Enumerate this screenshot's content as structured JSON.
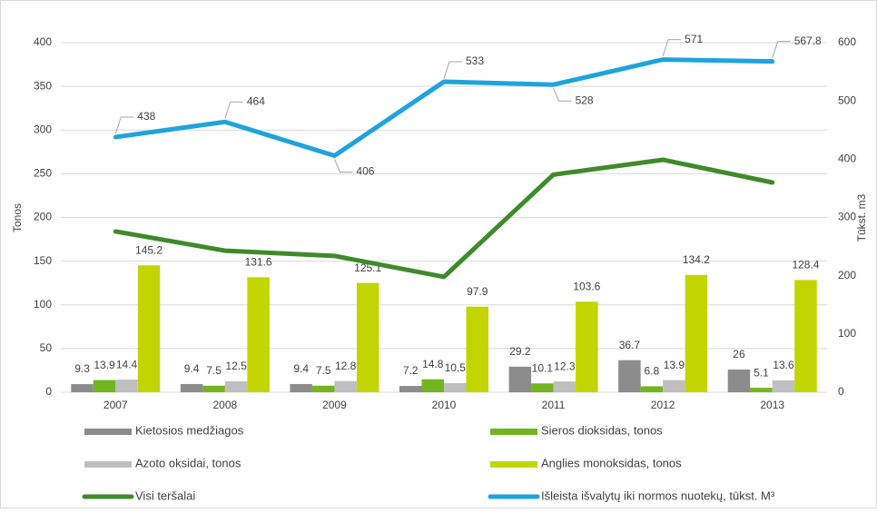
{
  "chart_data": {
    "type": "bar_line",
    "categories": [
      "2007",
      "2008",
      "2009",
      "2010",
      "2011",
      "2012",
      "2013"
    ],
    "ylabel": "Tonos",
    "y2label": "Tūkst. m3",
    "ylim": [
      0,
      400
    ],
    "yticks": [
      0,
      50,
      100,
      150,
      200,
      250,
      300,
      350,
      400
    ],
    "y2lim": [
      0,
      600
    ],
    "y2ticks": [
      0,
      100,
      200,
      300,
      400,
      500,
      600
    ],
    "grid": true,
    "series": [
      {
        "name": "Kietosios medžiagos",
        "type": "bar",
        "color": "#8c8c8c",
        "values": [
          9.3,
          9.4,
          9.4,
          7.2,
          29.2,
          36.7,
          26
        ]
      },
      {
        "name": "Sieros dioksidas, tonos",
        "type": "bar",
        "color": "#72b51e",
        "values": [
          13.9,
          7.5,
          7.5,
          14.8,
          10.1,
          6.8,
          5.1
        ]
      },
      {
        "name": "Azoto oksidai, tonos",
        "type": "bar",
        "color": "#bfbfbf",
        "values": [
          14.4,
          12.5,
          12.8,
          10.5,
          12.3,
          13.9,
          13.6
        ]
      },
      {
        "name": "Anglies monoksidas, tonos",
        "type": "bar",
        "color": "#c3d500",
        "values": [
          145.2,
          131.6,
          125.1,
          97.9,
          103.6,
          134.2,
          128.4
        ]
      },
      {
        "name": "Visi teršalai",
        "type": "line",
        "color": "#3f8a2b",
        "values": [
          184,
          162,
          156,
          132,
          249,
          266,
          240
        ]
      },
      {
        "name": "Išleista išvalytų iki normos nuotekų, tūkst. M³",
        "type": "line",
        "axis": "y2",
        "color": "#1ea3dc",
        "labels": true,
        "values": [
          438,
          464,
          406,
          533,
          528,
          571,
          567.8
        ]
      }
    ]
  }
}
